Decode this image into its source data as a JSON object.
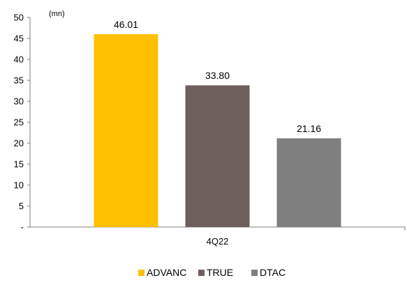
{
  "chart_data": {
    "type": "bar",
    "categories": [
      "4Q22"
    ],
    "unit_label": "(mn)",
    "ylim": [
      0,
      50
    ],
    "yticks": [
      0,
      5,
      10,
      15,
      20,
      25,
      30,
      35,
      40,
      45,
      50
    ],
    "ytick_labels": [
      "-",
      "5",
      "10",
      "15",
      "20",
      "25",
      "30",
      "35",
      "40",
      "45",
      "50"
    ],
    "grid": false,
    "legend_position": "bottom",
    "series": [
      {
        "name": "ADVANC",
        "values": [
          46.01
        ],
        "label": "46.01",
        "color": "#FFC000"
      },
      {
        "name": "TRUE",
        "values": [
          33.8
        ],
        "label": "33.80",
        "color": "#6F5F5C"
      },
      {
        "name": "DTAC",
        "values": [
          21.16
        ],
        "label": "21.16",
        "color": "#7F7F7F"
      }
    ]
  }
}
